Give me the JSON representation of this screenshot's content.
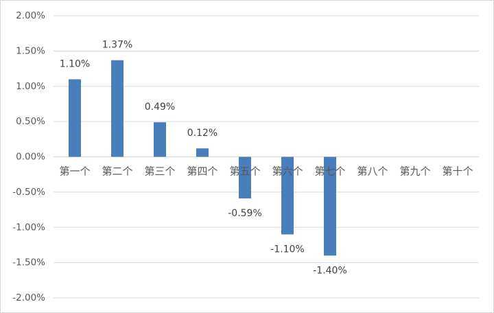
{
  "chart_data": {
    "type": "bar",
    "categories": [
      "第一个",
      "第二个",
      "第三个",
      "第四个",
      "第五个",
      "第六个",
      "第七个",
      "第八个",
      "第九个",
      "第十个"
    ],
    "values": [
      1.1,
      1.37,
      0.49,
      0.12,
      -0.59,
      -1.1,
      -1.4,
      null,
      null,
      null
    ],
    "value_labels": [
      "1.10%",
      "1.37%",
      "0.49%",
      "0.12%",
      "-0.59%",
      "-1.10%",
      "-1.40%",
      null,
      null,
      null
    ],
    "color": "#4a7ebb",
    "ylim": [
      -2,
      2
    ],
    "yticks": [
      {
        "value": -2,
        "label": "-2.00%"
      },
      {
        "value": -1.5,
        "label": "-1.50%"
      },
      {
        "value": -1,
        "label": "-1.00%"
      },
      {
        "value": -0.5,
        "label": "-0.50%"
      },
      {
        "value": 0,
        "label": "0.00%"
      },
      {
        "value": 0.5,
        "label": "0.50%"
      },
      {
        "value": 1,
        "label": "1.00%"
      },
      {
        "value": 1.5,
        "label": "1.50%"
      },
      {
        "value": 2,
        "label": "2.00%"
      }
    ],
    "grid": true
  }
}
